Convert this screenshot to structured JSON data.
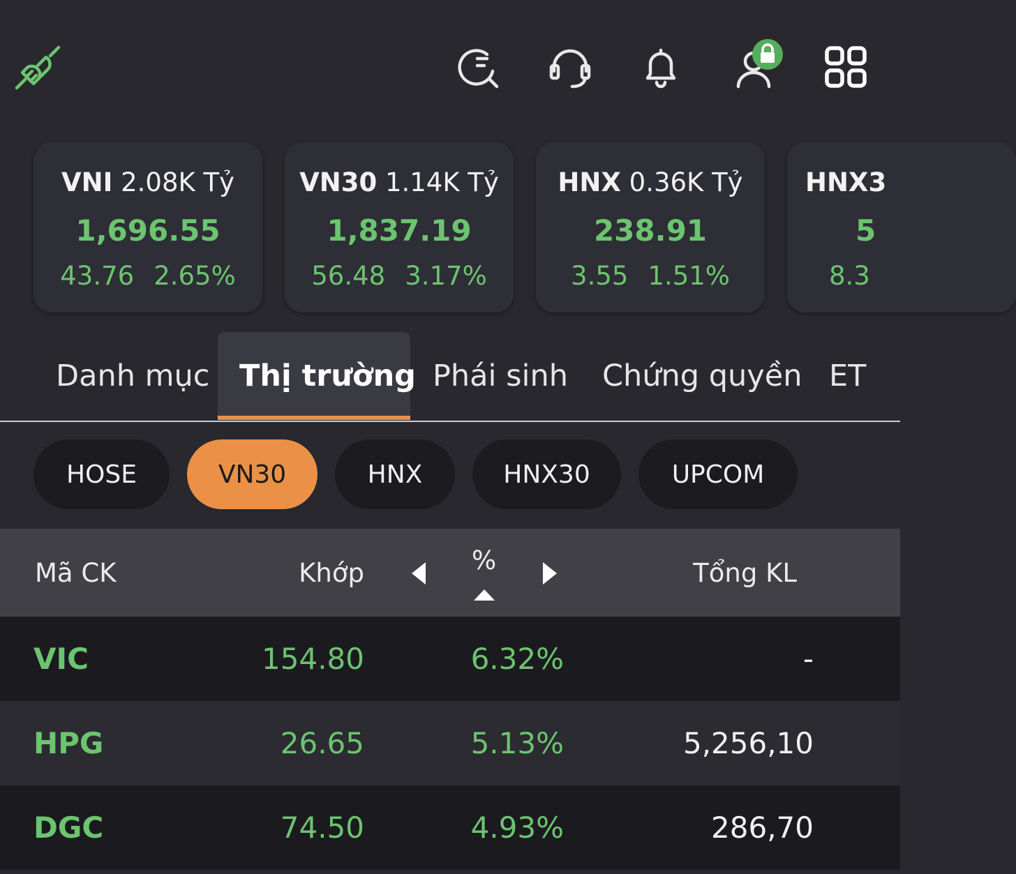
{
  "header": {
    "icons": [
      "plug-connected-icon",
      "search-icon",
      "headset-icon",
      "bell-icon",
      "user-lock-icon",
      "grid-icon"
    ],
    "accent": "#6cc46f"
  },
  "indices": [
    {
      "name": "VNI",
      "value_text": "2.08K Tỷ",
      "price": "1,696.55",
      "change": "43.76",
      "pct": "2.65%"
    },
    {
      "name": "VN30",
      "value_text": "1.14K Tỷ",
      "price": "1,837.19",
      "change": "56.48",
      "pct": "3.17%"
    },
    {
      "name": "HNX",
      "value_text": "0.36K Tỷ",
      "price": "238.91",
      "change": "3.55",
      "pct": "1.51%"
    },
    {
      "name": "HNX3",
      "value_text": "",
      "price": "5",
      "change": "8.3",
      "pct": ""
    }
  ],
  "tabs": [
    {
      "label": "Danh mục"
    },
    {
      "label": "Thị trường",
      "active": true
    },
    {
      "label": "Phái sinh"
    },
    {
      "label": "Chứng quyền"
    },
    {
      "label": "ET"
    }
  ],
  "exchanges": [
    {
      "label": "HOSE"
    },
    {
      "label": "VN30",
      "active": true
    },
    {
      "label": "HNX"
    },
    {
      "label": "HNX30"
    },
    {
      "label": "UPCOM"
    }
  ],
  "table": {
    "headers": {
      "symbol": "Mã CK",
      "price": "Khớp",
      "pct": "%",
      "volume": "Tổng KL"
    },
    "rows": [
      {
        "symbol": "VIC",
        "price": "154.80",
        "pct": "6.32%",
        "volume": "-"
      },
      {
        "symbol": "HPG",
        "price": "26.65",
        "pct": "5.13%",
        "volume": "5,256,10"
      },
      {
        "symbol": "DGC",
        "price": "74.50",
        "pct": "4.93%",
        "volume": "286,70"
      }
    ]
  },
  "colors": {
    "up": "#6cc46f",
    "active_pill": "#ea9147",
    "tab_underline": "#e8924a"
  }
}
